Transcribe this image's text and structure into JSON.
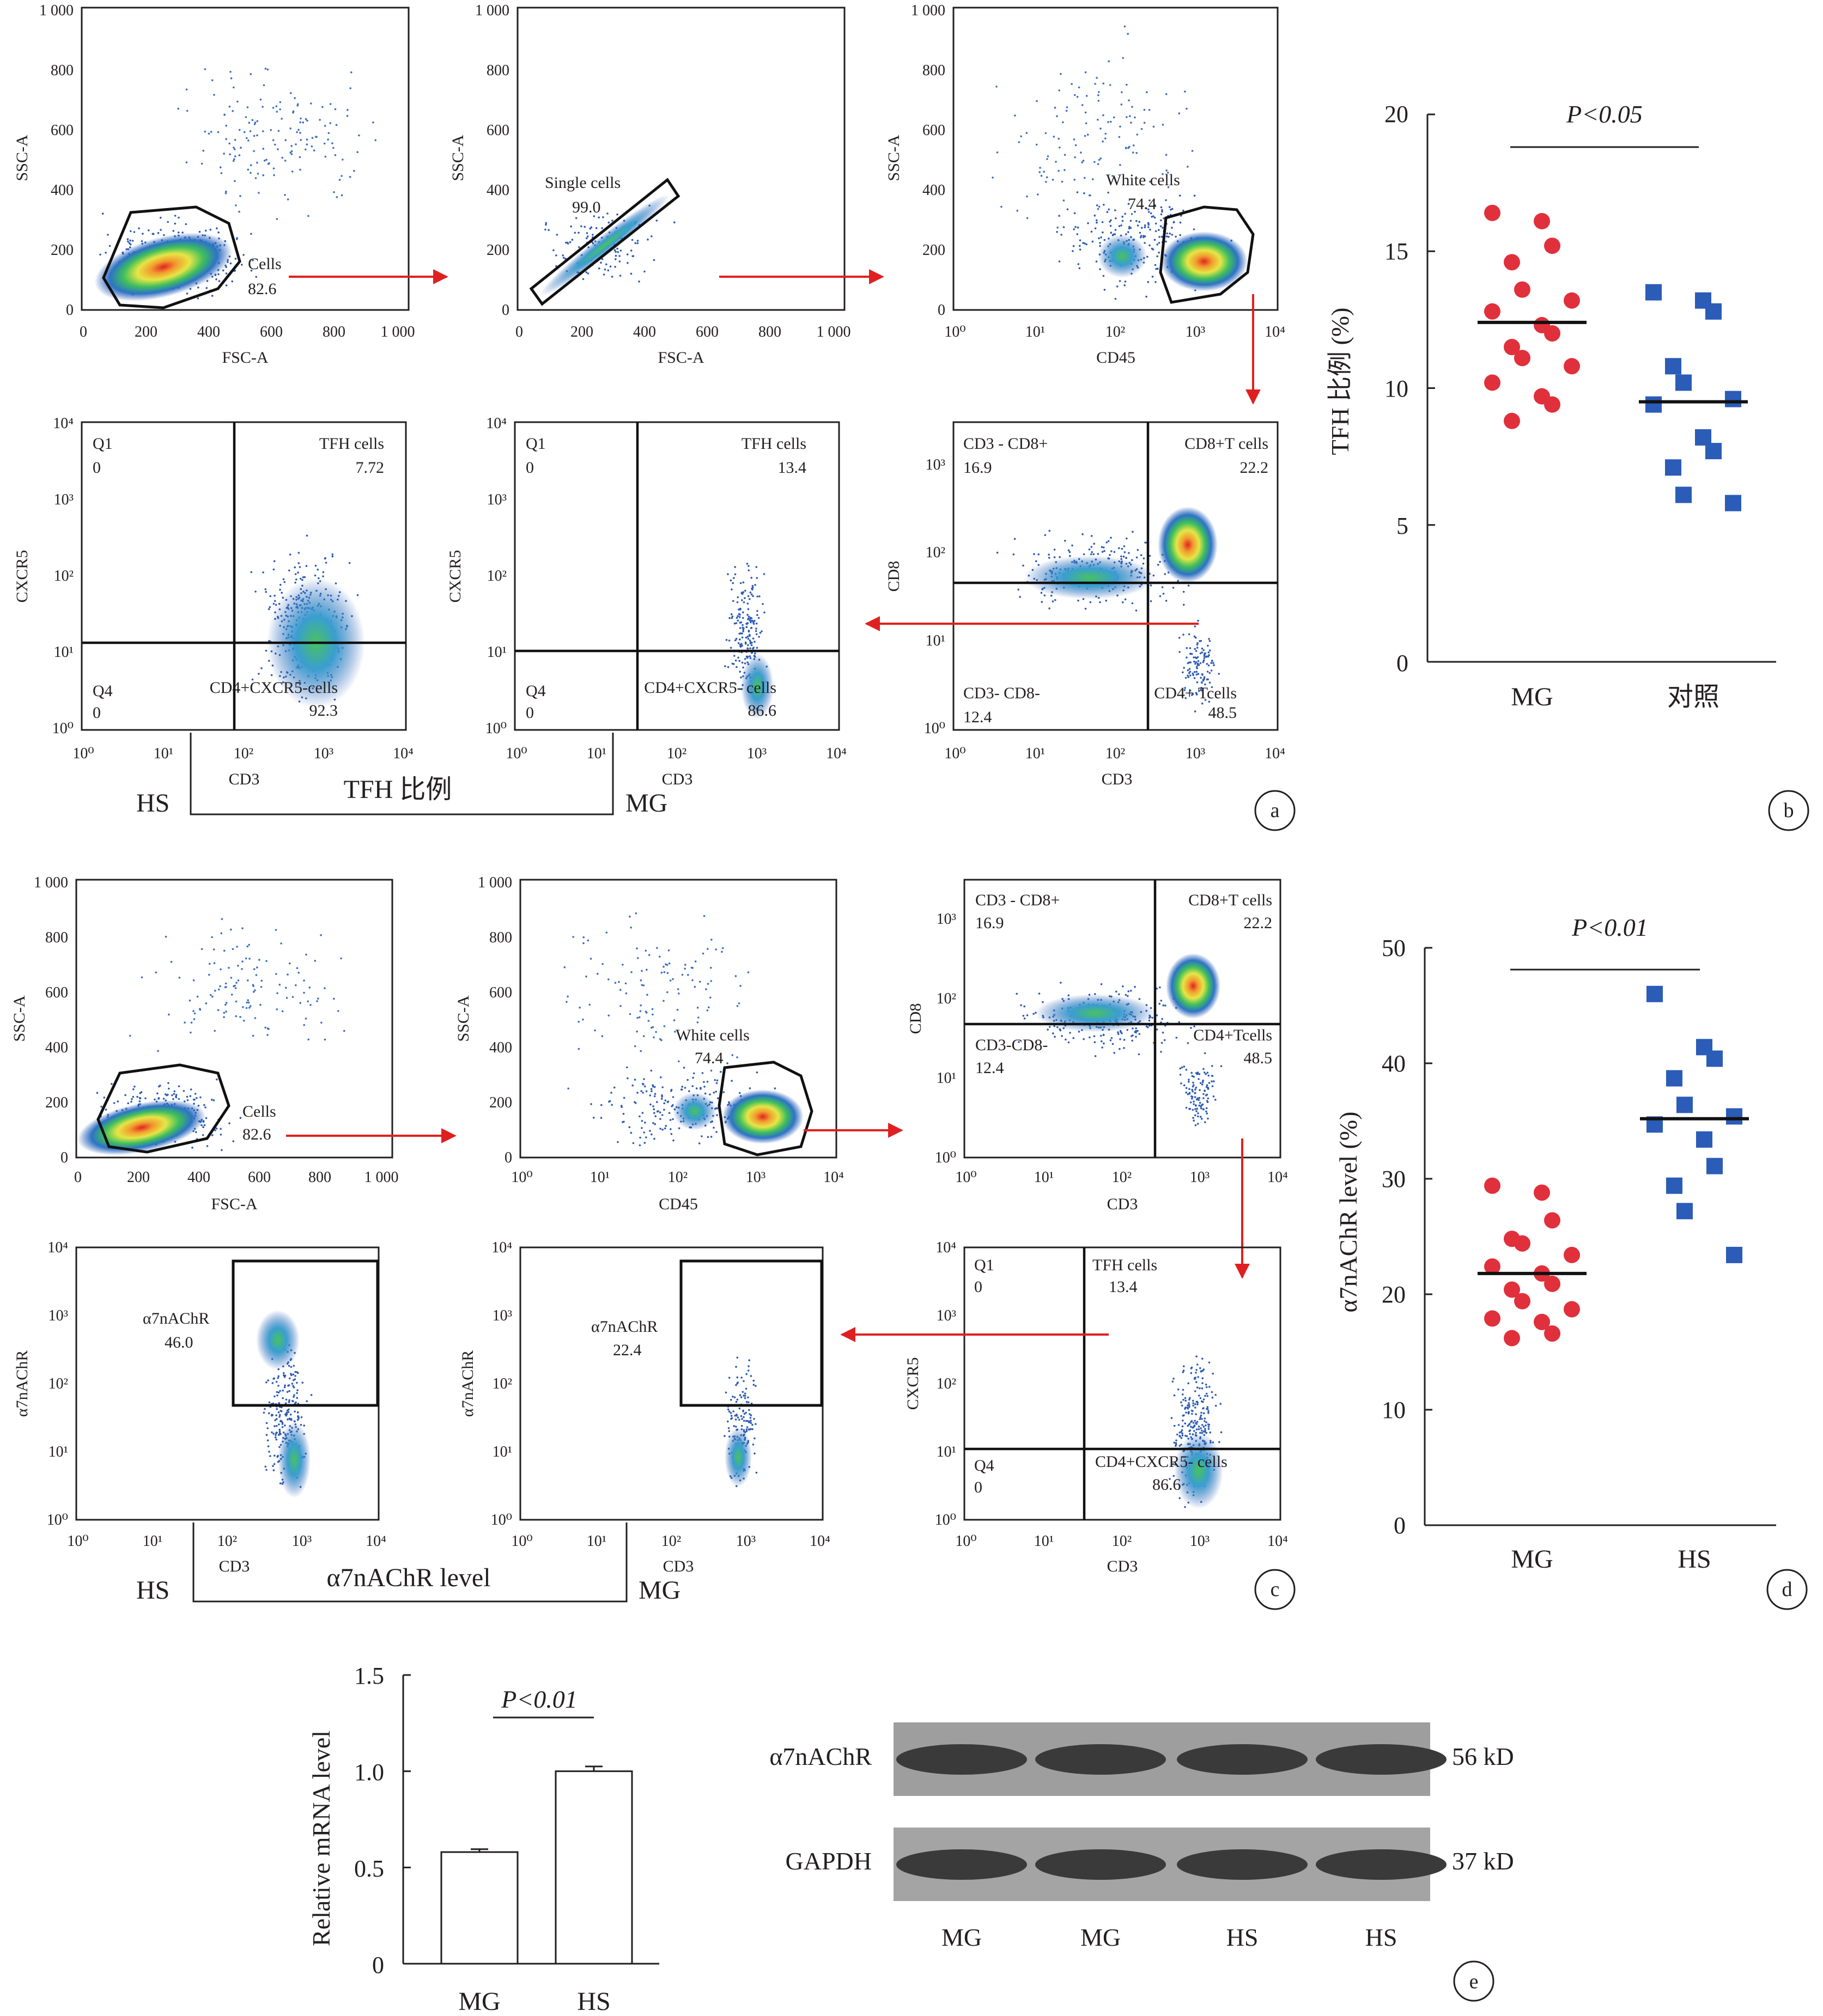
{
  "panel_letters": [
    "a",
    "b",
    "c",
    "d",
    "e"
  ],
  "panel_a": {
    "gating": [
      {
        "x_axis": "FSC-A",
        "y_axis": "SSC-A",
        "x_ticks": [
          "0",
          "200",
          "400",
          "600",
          "800",
          "1 000"
        ],
        "y_ticks": [
          "0",
          "200",
          "400",
          "600",
          "800",
          "1 000"
        ],
        "gate_name": "Cells",
        "gate_value": "82.6"
      },
      {
        "x_axis": "FSC-A",
        "y_axis": "SSC-A",
        "x_ticks": [
          "0",
          "200",
          "400",
          "600",
          "800",
          "1 000"
        ],
        "y_ticks": [
          "0",
          "200",
          "400",
          "600",
          "800",
          "1 000"
        ],
        "gate_name": "Single cells",
        "gate_value": "99.0"
      },
      {
        "x_axis": "CD45",
        "y_axis": "SSC-A",
        "x_ticks": [
          "10⁰",
          "10¹",
          "10²",
          "10³",
          "10⁴"
        ],
        "y_ticks": [
          "0",
          "200",
          "400",
          "600",
          "800",
          "1 000"
        ],
        "gate_name": "White cells",
        "gate_value": "74.4"
      }
    ],
    "cd8_plot": {
      "x_axis": "CD3",
      "y_axis": "CD8",
      "x_ticks": [
        "10⁰",
        "10¹",
        "10²",
        "10³",
        "10⁴"
      ],
      "y_ticks": [
        "10⁰",
        "10¹",
        "10²",
        "10³"
      ],
      "quadrants": [
        [
          "CD3 - CD8+",
          "16.9"
        ],
        [
          "CD8+T cells",
          "22.2"
        ],
        [
          "CD3- CD8-",
          "12.4"
        ],
        [
          "CD4+ Tcells",
          "48.5"
        ]
      ]
    },
    "tfh_plots": [
      {
        "group": "HS",
        "x_axis": "CD3",
        "y_axis": "CXCR5",
        "quadrants": [
          [
            "Q1",
            "0"
          ],
          [
            "TFH cells",
            "7.72"
          ],
          [
            "Q4",
            "0"
          ],
          [
            "CD4+CXCR5-cells",
            "92.3"
          ]
        ]
      },
      {
        "group": "MG",
        "x_axis": "CD3",
        "y_axis": "CXCR5",
        "quadrants": [
          [
            "Q1",
            "0"
          ],
          [
            "TFH cells",
            "13.4"
          ],
          [
            "Q4",
            "0"
          ],
          [
            "CD4+CXCR5- cells",
            "86.6"
          ]
        ]
      }
    ],
    "log_ticks": [
      "10⁰",
      "10¹",
      "10²",
      "10³",
      "10⁴"
    ],
    "bracket_label": "TFH 比例",
    "group_left": "HS",
    "group_right": "MG"
  },
  "panel_c": {
    "gating": [
      {
        "x_axis": "FSC-A",
        "y_axis": "SSC-A",
        "gate_name": "Cells",
        "gate_value": "82.6"
      },
      {
        "x_axis": "CD45",
        "y_axis": "SSC-A",
        "gate_name": "White cells",
        "gate_value": "74.4"
      },
      {
        "x_axis": "CD3",
        "y_axis": "CD8",
        "quadrants": [
          [
            "CD3 - CD8+",
            "16.9"
          ],
          [
            "CD8+T cells",
            "22.2"
          ],
          [
            "CD3-CD8-",
            "12.4"
          ],
          [
            "CD4+Tcells",
            "48.5"
          ]
        ]
      }
    ],
    "a7_plots": [
      {
        "group": "HS",
        "x_axis": "CD3",
        "y_axis": "α7nAChR",
        "gate_name": "α7nAChR",
        "gate_value": "46.0"
      },
      {
        "group": "MG",
        "x_axis": "CD3",
        "y_axis": "α7nAChR",
        "gate_name": "α7nAChR",
        "gate_value": "22.4"
      }
    ],
    "tfh_plot": {
      "x_axis": "CD3",
      "y_axis": "CXCR5",
      "quadrants": [
        [
          "Q1",
          "0"
        ],
        [
          "TFH cells",
          "13.4"
        ],
        [
          "Q4",
          "0"
        ],
        [
          "CD4+CXCR5- cells",
          "86.6"
        ]
      ]
    },
    "bracket_label": "α7nAChR level",
    "group_left": "HS",
    "group_right": "MG"
  },
  "chart_data": [
    {
      "type": "scatter",
      "panel": "b",
      "ylabel": "TFH 比例 (%)",
      "ylim": [
        0,
        20
      ],
      "yticks": [
        "0",
        "5",
        "10",
        "15",
        "20"
      ],
      "categories": [
        "MG",
        "对照"
      ],
      "significance": "P<0.05",
      "series": [
        {
          "name": "MG",
          "color": "#e0303c",
          "marker": "circle",
          "mean": 12.4,
          "values": [
            16.4,
            16.1,
            15.2,
            14.6,
            13.6,
            13.2,
            12.8,
            12.3,
            12.0,
            11.5,
            11.1,
            10.8,
            10.2,
            9.7,
            9.4,
            8.8
          ]
        },
        {
          "name": "对照",
          "color": "#2a5cb8",
          "marker": "square",
          "mean": 9.5,
          "values": [
            13.5,
            13.2,
            12.8,
            10.8,
            10.2,
            9.6,
            9.4,
            8.2,
            7.7,
            7.1,
            6.1,
            5.8
          ]
        }
      ]
    },
    {
      "type": "scatter",
      "panel": "d",
      "ylabel": "α7nAChR level (%)",
      "ylim": [
        0,
        50
      ],
      "yticks": [
        "0",
        "10",
        "20",
        "30",
        "40",
        "50"
      ],
      "categories": [
        "MG",
        "HS"
      ],
      "significance": "P<0.01",
      "series": [
        {
          "name": "MG",
          "color": "#e0303c",
          "marker": "circle",
          "mean": 21.8,
          "values": [
            29.4,
            28.8,
            26.4,
            24.8,
            24.4,
            23.4,
            22.4,
            21.8,
            20.9,
            20.4,
            19.4,
            18.7,
            17.9,
            17.6,
            16.6,
            16.2
          ]
        },
        {
          "name": "HS",
          "color": "#2a5cb8",
          "marker": "square",
          "mean": 35.2,
          "values": [
            46.0,
            41.4,
            40.4,
            38.7,
            36.4,
            35.4,
            34.7,
            33.4,
            31.1,
            29.4,
            27.2,
            23.4
          ]
        }
      ]
    },
    {
      "type": "bar",
      "panel": "e",
      "ylabel": "Relative mRNA level",
      "ylim": [
        0,
        1.5
      ],
      "yticks": [
        "0",
        "0.5",
        "1.0",
        "1.5"
      ],
      "categories": [
        "MG",
        "HS"
      ],
      "values": [
        0.58,
        1.0
      ],
      "errors": [
        0.015,
        0.025
      ],
      "significance": "P<0.01"
    }
  ],
  "western_blot": {
    "proteins": [
      {
        "label": "α7nAChR",
        "size": "56 kD"
      },
      {
        "label": "GAPDH",
        "size": "37 kD"
      }
    ],
    "lanes": [
      "MG",
      "MG",
      "HS",
      "HS"
    ]
  }
}
